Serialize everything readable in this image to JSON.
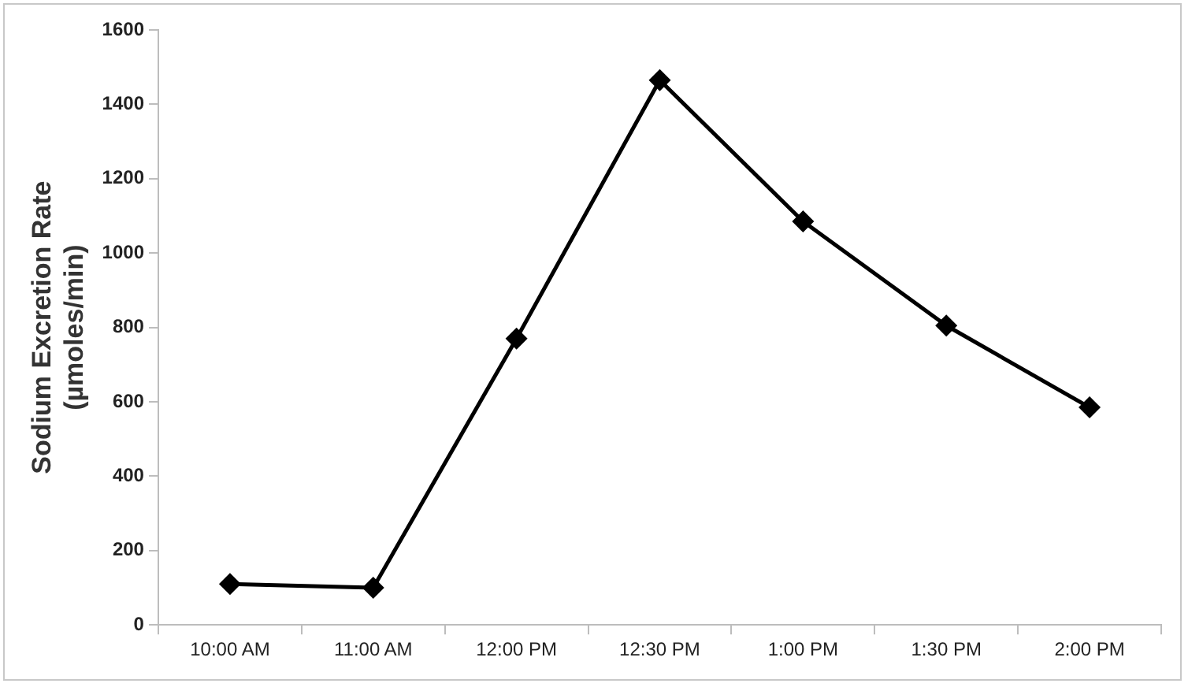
{
  "chart_data": {
    "type": "line",
    "ylabel": "Sodium Excretion Rate\n(µmoles/min)",
    "categories": [
      "10:00 AM",
      "11:00 AM",
      "12:00 PM",
      "12:30 PM",
      "1:00 PM",
      "1:30 PM",
      "2:00 PM"
    ],
    "series": [
      {
        "color": "#000000",
        "values": [
          110,
          100,
          770,
          1465,
          1085,
          805,
          585
        ]
      }
    ],
    "ylim": [
      0,
      1600
    ],
    "yticks": [
      0,
      200,
      400,
      600,
      800,
      1000,
      1200,
      1400,
      1600
    ],
    "grid": false,
    "legend": false,
    "marker": "diamond",
    "line_style": "solid"
  }
}
